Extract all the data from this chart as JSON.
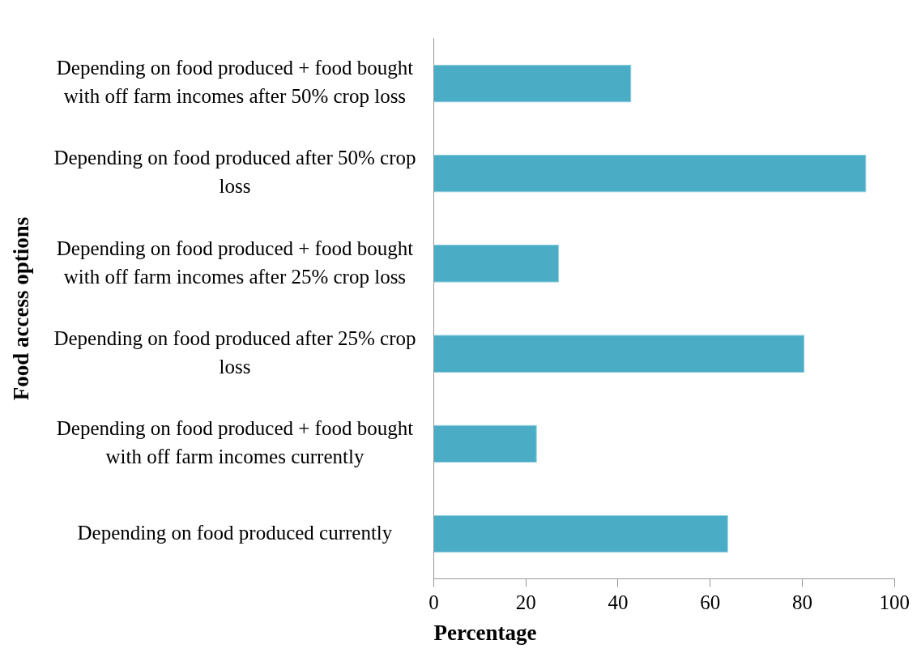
{
  "chart_data": {
    "type": "bar",
    "orientation": "horizontal",
    "xlabel": "Percentage",
    "ylabel": "Food access options",
    "categories": [
      "Depending on food produced + food bought with off farm incomes after 50% crop loss",
      "Depending on food produced after 50% crop loss",
      "Depending on food produced + food bought with off farm incomes after 25% crop loss",
      "Depending on food produced after 25% crop loss",
      "Depending on food produced + food bought with off farm incomes currently",
      "Depending on food produced currently"
    ],
    "values": [
      42.9,
      93.9,
      27.2,
      80.5,
      22.4,
      63.9
    ],
    "color": "#4bacc6",
    "xlim": [
      0,
      100
    ],
    "xticks": [
      0,
      20,
      40,
      60,
      80,
      100
    ],
    "grid": false,
    "legend": false
  }
}
